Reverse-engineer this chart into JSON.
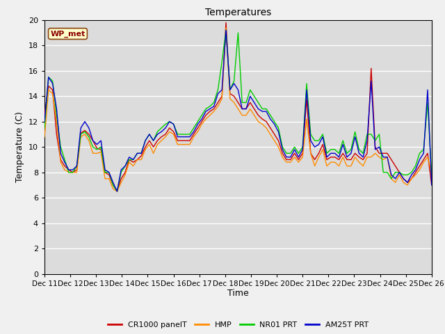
{
  "title": "Temperatures",
  "xlabel": "Time",
  "ylabel": "Temperature (C)",
  "ylim": [
    0,
    20
  ],
  "yticks": [
    0,
    2,
    4,
    6,
    8,
    10,
    12,
    14,
    16,
    18,
    20
  ],
  "x_labels": [
    "Dec 11",
    "Dec 12",
    "Dec 13",
    "Dec 14",
    "Dec 15",
    "Dec 16",
    "Dec 17",
    "Dec 18",
    "Dec 19",
    "Dec 20",
    "Dec 21",
    "Dec 22",
    "Dec 23",
    "Dec 24",
    "Dec 25",
    "Dec 26"
  ],
  "annotation_text": "WP_met",
  "annotation_color": "#8B0000",
  "annotation_bg": "#FFFFCC",
  "annotation_border": "#8B4513",
  "colors": {
    "CR1000 panelT": "#CC0000",
    "HMP": "#FF8C00",
    "NR01 PRT": "#00CC00",
    "AM25T PRT": "#0000CC"
  },
  "background_color": "#DCDCDC",
  "fig_background_color": "#F0F0F0",
  "grid_color": "#FFFFFF",
  "cr1000": [
    12.5,
    14.8,
    14.5,
    11.0,
    9.0,
    8.5,
    8.2,
    8.0,
    8.2,
    11.1,
    11.3,
    11.0,
    10.5,
    9.9,
    9.8,
    8.0,
    7.8,
    7.0,
    6.5,
    7.5,
    8.0,
    9.0,
    8.8,
    9.0,
    9.3,
    10.0,
    10.5,
    10.0,
    10.5,
    10.8,
    11.0,
    11.5,
    11.2,
    10.5,
    10.5,
    10.5,
    10.5,
    11.0,
    11.5,
    12.0,
    12.5,
    12.8,
    13.0,
    13.5,
    14.0,
    19.8,
    14.2,
    14.0,
    13.5,
    13.0,
    13.0,
    13.5,
    13.0,
    12.5,
    12.2,
    12.0,
    11.5,
    11.0,
    10.5,
    9.5,
    9.0,
    9.0,
    9.5,
    9.0,
    9.5,
    13.8,
    9.5,
    9.0,
    9.5,
    10.2,
    9.0,
    9.2,
    9.2,
    9.0,
    9.5,
    9.0,
    9.0,
    9.5,
    9.2,
    9.0,
    9.5,
    16.2,
    10.0,
    9.5,
    9.5,
    9.5,
    9.0,
    8.5,
    8.0,
    7.5,
    7.2,
    7.5,
    8.0,
    8.5,
    9.0,
    9.5,
    7.0
  ],
  "hmp": [
    10.8,
    14.5,
    14.2,
    12.0,
    8.8,
    8.2,
    8.0,
    8.0,
    8.0,
    10.8,
    11.0,
    10.5,
    9.5,
    9.5,
    9.6,
    7.5,
    7.5,
    6.7,
    6.5,
    7.2,
    7.8,
    8.8,
    8.5,
    9.0,
    9.0,
    9.8,
    10.2,
    9.5,
    10.2,
    10.5,
    10.8,
    11.2,
    11.0,
    10.2,
    10.2,
    10.2,
    10.2,
    10.8,
    11.2,
    11.8,
    12.2,
    12.5,
    12.8,
    13.2,
    13.8,
    19.4,
    13.8,
    13.5,
    13.0,
    12.5,
    12.5,
    13.0,
    12.5,
    12.0,
    11.8,
    11.5,
    11.0,
    10.5,
    10.0,
    9.2,
    8.8,
    8.8,
    9.2,
    8.8,
    9.2,
    12.2,
    9.5,
    8.5,
    9.2,
    9.8,
    8.5,
    8.8,
    8.8,
    8.5,
    9.2,
    8.5,
    8.5,
    9.2,
    8.8,
    8.5,
    9.2,
    9.2,
    9.5,
    9.2,
    9.0,
    9.2,
    7.5,
    7.2,
    7.8,
    7.2,
    7.0,
    7.5,
    7.8,
    8.2,
    8.8,
    9.2,
    8.0
  ],
  "nr01": [
    11.5,
    15.5,
    15.2,
    12.5,
    10.0,
    9.0,
    8.0,
    8.0,
    8.5,
    11.0,
    11.2,
    10.8,
    10.0,
    9.8,
    10.0,
    8.0,
    8.0,
    7.0,
    6.5,
    8.0,
    8.5,
    9.0,
    9.0,
    9.5,
    9.5,
    10.5,
    11.0,
    10.5,
    11.2,
    11.5,
    11.8,
    12.0,
    11.8,
    11.0,
    11.0,
    11.0,
    11.0,
    11.5,
    12.0,
    12.5,
    13.0,
    13.2,
    13.5,
    14.5,
    16.7,
    19.2,
    14.5,
    15.2,
    19.0,
    13.5,
    13.5,
    14.5,
    14.0,
    13.5,
    13.0,
    13.0,
    12.5,
    12.0,
    11.5,
    10.0,
    9.5,
    9.5,
    10.0,
    9.5,
    10.0,
    15.0,
    11.0,
    10.5,
    10.5,
    11.0,
    9.5,
    9.8,
    9.8,
    9.5,
    10.5,
    9.5,
    9.8,
    11.2,
    9.8,
    9.5,
    11.0,
    11.0,
    10.5,
    11.0,
    8.0,
    8.0,
    7.5,
    8.0,
    8.0,
    7.8,
    7.8,
    8.0,
    8.5,
    9.5,
    9.8,
    13.5,
    7.8
  ],
  "am25t": [
    12.0,
    15.5,
    15.0,
    13.0,
    9.5,
    8.8,
    8.2,
    8.2,
    8.5,
    11.5,
    12.0,
    11.5,
    10.5,
    10.2,
    10.5,
    8.2,
    8.0,
    7.2,
    6.5,
    8.2,
    8.5,
    9.2,
    9.0,
    9.5,
    9.5,
    10.5,
    11.0,
    10.5,
    11.0,
    11.2,
    11.5,
    12.0,
    11.8,
    10.8,
    10.8,
    10.8,
    10.8,
    11.2,
    11.8,
    12.2,
    12.8,
    13.0,
    13.2,
    14.2,
    14.5,
    19.2,
    14.5,
    15.0,
    14.5,
    13.0,
    13.0,
    14.0,
    13.5,
    13.0,
    12.8,
    12.8,
    12.2,
    11.8,
    11.2,
    9.8,
    9.2,
    9.2,
    9.8,
    9.2,
    9.8,
    14.5,
    10.5,
    10.0,
    10.2,
    10.8,
    9.2,
    9.5,
    9.5,
    9.2,
    10.2,
    9.2,
    9.5,
    10.8,
    9.5,
    9.2,
    10.5,
    15.2,
    9.8,
    10.0,
    9.2,
    9.2,
    7.8,
    7.5,
    8.0,
    7.5,
    7.2,
    7.8,
    8.2,
    9.0,
    9.5,
    14.5,
    7.0
  ]
}
